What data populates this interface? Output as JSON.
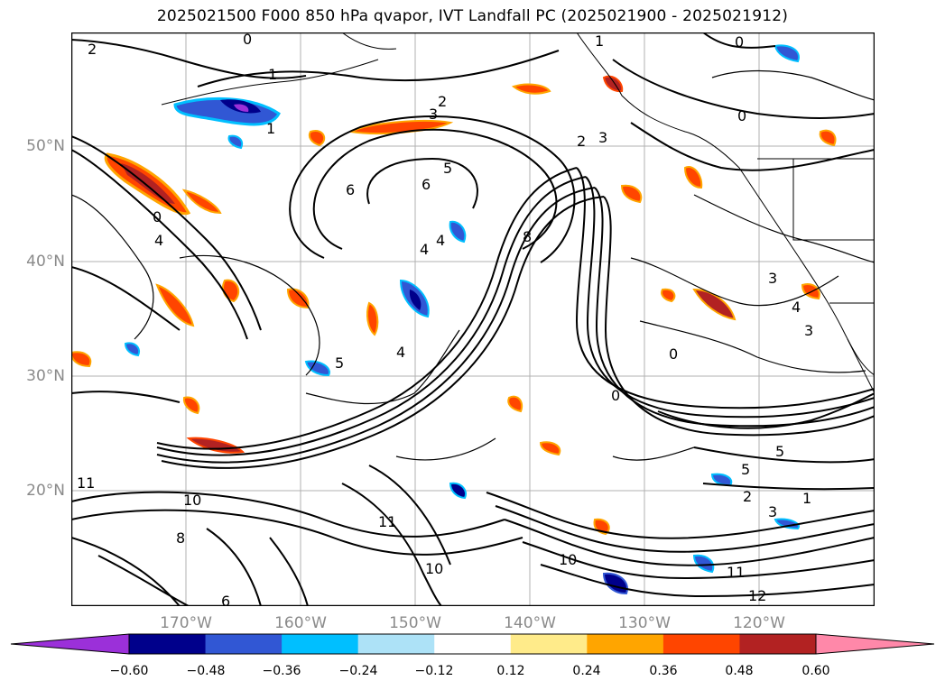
{
  "title": "2025021500 F000 850 hPa qvapor, IVT Landfall PC (2025021900 - 2025021912)",
  "map": {
    "lat_labels": [
      "50°N",
      "40°N",
      "30°N",
      "20°N"
    ],
    "lon_labels": [
      "170°W",
      "160°W",
      "150°W",
      "140°W",
      "130°W",
      "120°W"
    ],
    "contour_labels": [
      "2",
      "0",
      "1",
      "1",
      "2",
      "3",
      "2",
      "3",
      "5",
      "6",
      "6",
      "4",
      "4",
      "5",
      "4",
      "0",
      "8",
      "4",
      "3",
      "4",
      "3",
      "0",
      "0",
      "5",
      "5",
      "2",
      "1",
      "3",
      "11",
      "10",
      "11",
      "10",
      "11",
      "12",
      "10",
      "8",
      "6",
      "0",
      "1",
      "0"
    ],
    "colors": {
      "coast": "#000000",
      "grid": "#b0b0b0",
      "contour": "#000000"
    }
  },
  "colorbar": {
    "colors": [
      "#9b30d9",
      "#00008b",
      "#3157d4",
      "#00bfff",
      "#ade2f7",
      "#ffffff",
      "#ffeb8a",
      "#ffa500",
      "#ff4500",
      "#b22222",
      "#ff88a9"
    ],
    "tick_labels": [
      "−0.60",
      "−0.48",
      "−0.36",
      "−0.24",
      "−0.12",
      "0.12",
      "0.24",
      "0.36",
      "0.48",
      "0.60"
    ]
  }
}
